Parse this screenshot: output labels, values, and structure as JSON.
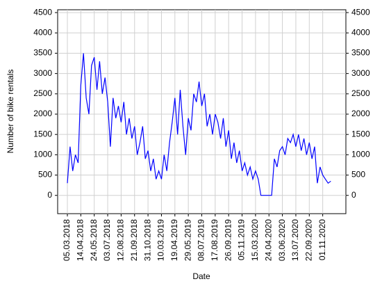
{
  "chart_data": {
    "type": "line",
    "x_label": "Date",
    "y_label": "Number of bike rentals",
    "categories": [
      "05.03.2018",
      null,
      null,
      null,
      null,
      "14.04.2018",
      null,
      null,
      null,
      null,
      "24.05.2018",
      null,
      null,
      null,
      null,
      "03.07.2018",
      null,
      null,
      null,
      null,
      "12.08.2018",
      null,
      null,
      null,
      null,
      "21.09.2018",
      null,
      null,
      null,
      null,
      "31.10.2018",
      null,
      null,
      null,
      null,
      "10.03.2019",
      null,
      null,
      null,
      null,
      "19.04.2019",
      null,
      null,
      null,
      null,
      "29.05.2019",
      null,
      null,
      null,
      null,
      "08.07.2019",
      null,
      null,
      null,
      null,
      "17.08.2019",
      null,
      null,
      null,
      null,
      "26.09.2019",
      null,
      null,
      null,
      null,
      "05.11.2019",
      null,
      null,
      null,
      null,
      "15.03.2020",
      null,
      null,
      null,
      null,
      "24.04.2020",
      null,
      null,
      null,
      null,
      "03.06.2020",
      null,
      null,
      null,
      null,
      "13.07.2020",
      null,
      null,
      null,
      null,
      "22.09.2020",
      null,
      null,
      null,
      null,
      "01.11.2020",
      null,
      null,
      null
    ],
    "series": [
      {
        "name": "Number of bike rentals",
        "color": "#0000ff",
        "values": [
          300,
          1200,
          600,
          1000,
          800,
          2700,
          3500,
          2400,
          2000,
          3200,
          3400,
          2600,
          3300,
          2500,
          2900,
          2300,
          1200,
          2400,
          1900,
          2200,
          1800,
          2300,
          1500,
          1900,
          1400,
          1700,
          1000,
          1300,
          1700,
          900,
          1100,
          600,
          900,
          400,
          600,
          400,
          1000,
          600,
          1300,
          1800,
          2400,
          1500,
          2600,
          1700,
          1000,
          1900,
          1600,
          2500,
          2300,
          2800,
          2200,
          2500,
          1700,
          2000,
          1500,
          2000,
          1800,
          1400,
          1900,
          1200,
          1600,
          900,
          1300,
          800,
          1100,
          600,
          800,
          500,
          700,
          400,
          600,
          400,
          0,
          0,
          0,
          0,
          0,
          900,
          700,
          1100,
          1200,
          1000,
          1400,
          1300,
          1500,
          1200,
          1500,
          1100,
          1400,
          1000,
          1300,
          900,
          1200,
          300,
          700,
          500,
          400,
          300,
          350
        ]
      }
    ],
    "ylim": [
      -450,
      4570
    ],
    "yticks": [
      0,
      500,
      1000,
      1500,
      2000,
      2500,
      3000,
      3500,
      4000,
      4500
    ],
    "grid": true
  }
}
